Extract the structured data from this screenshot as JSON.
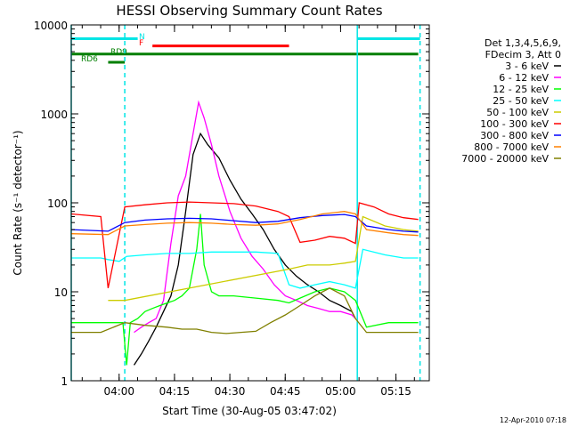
{
  "chart_data": {
    "type": "line",
    "title": "HESSI Observing Summary Count Rates",
    "xlabel": "Start Time (30-Aug-05 03:47:02)",
    "ylabel": "Count Rate (s⁻¹ detector⁻¹)",
    "y_scale": "log",
    "ylim": [
      1,
      10000
    ],
    "x_unit": "minutes after 03:47:02",
    "xlim": [
      0,
      97
    ],
    "x_ticks": [
      {
        "x": 12.97,
        "label": "04:00"
      },
      {
        "x": 27.97,
        "label": "04:15"
      },
      {
        "x": 42.97,
        "label": "04:30"
      },
      {
        "x": 57.97,
        "label": "04:45"
      },
      {
        "x": 72.97,
        "label": "05:00"
      },
      {
        "x": 87.97,
        "label": "05:15"
      }
    ],
    "y_ticks": [
      {
        "y": 1,
        "label": "1"
      },
      {
        "y": 10,
        "label": "10"
      },
      {
        "y": 100,
        "label": "100"
      },
      {
        "y": 1000,
        "label": "1000"
      },
      {
        "y": 10000,
        "label": "10000"
      }
    ],
    "legend_header": [
      "Det 1,3,4,5,6,9,",
      "FDecim 3, Att 0"
    ],
    "legend_position": "right",
    "footer": "12-Apr-2010 07:18",
    "flag_bars": [
      {
        "label": "N",
        "color": "#00e5e5",
        "label_color": "#00e5e5",
        "segments": [
          [
            0,
            18
          ],
          [
            77.5,
            94.5
          ]
        ],
        "y": 7000
      },
      {
        "label": "F",
        "color": "#ff0000",
        "label_color": "#ff0000",
        "segments": [
          [
            22,
            59
          ]
        ],
        "y": 5800
      },
      {
        "label": "RD9",
        "color": "#007f00",
        "label_color": "#007f00",
        "segments": [
          [
            0,
            59
          ],
          [
            59,
            76
          ],
          [
            76,
            94
          ]
        ],
        "y": 4700
      },
      {
        "label": "RD6",
        "color": "#007f00",
        "label_color": "#007f00",
        "segments": [
          [
            10,
            14.5
          ]
        ],
        "y": 3800
      }
    ],
    "vertical_lines": [
      {
        "x": 0,
        "color": "#00e5e5",
        "style": "solid"
      },
      {
        "x": 14.5,
        "color": "#00e5e5",
        "style": "dashed"
      },
      {
        "x": 77.5,
        "color": "#00e5e5",
        "style": "solid"
      },
      {
        "x": 94.5,
        "color": "#00e5e5",
        "style": "dashed"
      }
    ],
    "series": [
      {
        "name": "3 - 6 keV",
        "color": "#000000",
        "x": [
          17,
          19,
          21,
          23,
          25,
          27,
          29,
          31,
          33,
          35,
          37,
          40,
          43,
          46,
          49,
          52,
          55,
          58,
          61,
          64,
          67,
          70,
          73,
          76,
          77
        ],
        "y": [
          1.5,
          2.0,
          2.8,
          4,
          6,
          9,
          20,
          80,
          350,
          600,
          450,
          320,
          180,
          110,
          75,
          50,
          30,
          20,
          15,
          12,
          10,
          8,
          7,
          6,
          5
        ]
      },
      {
        "name": "6 - 12 keV",
        "color": "#ff00ff",
        "x": [
          17,
          19,
          21,
          23,
          25,
          27,
          29,
          31,
          33,
          34.5,
          36,
          38,
          40,
          43,
          46,
          49,
          52,
          55,
          58,
          61,
          64,
          67,
          70,
          73,
          76,
          77
        ],
        "y": [
          3.5,
          4,
          4.5,
          5,
          8,
          35,
          120,
          200,
          600,
          1350,
          900,
          450,
          200,
          80,
          40,
          25,
          18,
          12,
          9,
          8,
          7,
          6.5,
          6,
          6,
          5.5,
          5
        ]
      },
      {
        "name": "12 - 25 keV",
        "color": "#00ff00",
        "x": [
          0,
          8,
          14,
          15,
          16,
          18,
          20,
          22,
          24,
          26,
          28,
          30,
          32,
          34,
          35,
          36,
          38,
          40,
          44,
          50,
          56,
          59,
          62,
          66,
          70,
          74,
          77,
          80,
          86,
          92,
          94
        ],
        "y": [
          4.5,
          4.5,
          4.5,
          1.5,
          4.5,
          5,
          6,
          6.5,
          7,
          7.5,
          8,
          9,
          11,
          30,
          75,
          20,
          10,
          9,
          9,
          8.5,
          8,
          7.5,
          8.5,
          10,
          11,
          10,
          8,
          4,
          4.5,
          4.5,
          4.5
        ]
      },
      {
        "name": "25 - 50 keV",
        "color": "#00ffff",
        "x": [
          0,
          8,
          10,
          13,
          15,
          20,
          26,
          32,
          38,
          44,
          50,
          56,
          59,
          62,
          66,
          70,
          74,
          77,
          79,
          85,
          90,
          94
        ],
        "y": [
          24,
          24,
          23,
          22,
          25,
          26,
          27,
          27,
          28,
          28,
          28,
          27,
          12,
          11,
          12,
          13,
          12,
          11,
          30,
          26,
          24,
          24
        ]
      },
      {
        "name": "50 - 100 keV",
        "color": "#cccc00",
        "x": [
          10,
          14.5,
          59,
          64,
          70,
          74,
          77,
          79,
          85,
          90,
          94
        ],
        "y": [
          8,
          8,
          18,
          20,
          20,
          21,
          22,
          70,
          55,
          50,
          48
        ]
      },
      {
        "name": "100 - 300 keV",
        "color": "#ff0000",
        "x": [
          0,
          8,
          10,
          14.5,
          20,
          26,
          32,
          38,
          44,
          50,
          56,
          59,
          62,
          66,
          70,
          74,
          77,
          78,
          82,
          86,
          90,
          94
        ],
        "y": [
          75,
          70,
          11,
          90,
          95,
          100,
          102,
          100,
          98,
          92,
          80,
          70,
          36,
          38,
          42,
          40,
          35,
          100,
          90,
          75,
          68,
          65
        ]
      },
      {
        "name": "300 - 800 keV",
        "color": "#0000ff",
        "x": [
          0,
          10,
          14.5,
          20,
          26,
          32,
          38,
          44,
          50,
          56,
          62,
          68,
          74,
          77,
          80,
          86,
          90,
          94
        ],
        "y": [
          50,
          48,
          60,
          64,
          66,
          67,
          66,
          63,
          60,
          62,
          68,
          72,
          74,
          70,
          55,
          50,
          48,
          47
        ]
      },
      {
        "name": "800 - 7000 keV",
        "color": "#ff8000",
        "x": [
          0,
          10,
          14.5,
          20,
          26,
          32,
          38,
          44,
          50,
          56,
          62,
          68,
          74,
          77,
          80,
          86,
          90,
          94
        ],
        "y": [
          45,
          44,
          55,
          57,
          59,
          60,
          59,
          57,
          56,
          58,
          65,
          75,
          80,
          75,
          50,
          46,
          44,
          43
        ]
      },
      {
        "name": "7000 - 20000 keV",
        "color": "#808000",
        "x": [
          0,
          8,
          14.5,
          20,
          26,
          30,
          34,
          38,
          42,
          46,
          50,
          54,
          58,
          62,
          66,
          70,
          74,
          77,
          80,
          86,
          90,
          94
        ],
        "y": [
          3.5,
          3.5,
          4.5,
          4.2,
          4.0,
          3.8,
          3.8,
          3.5,
          3.4,
          3.5,
          3.6,
          4.5,
          5.5,
          7,
          9,
          11,
          9,
          5,
          3.5,
          3.5,
          3.5,
          3.5
        ]
      }
    ]
  }
}
